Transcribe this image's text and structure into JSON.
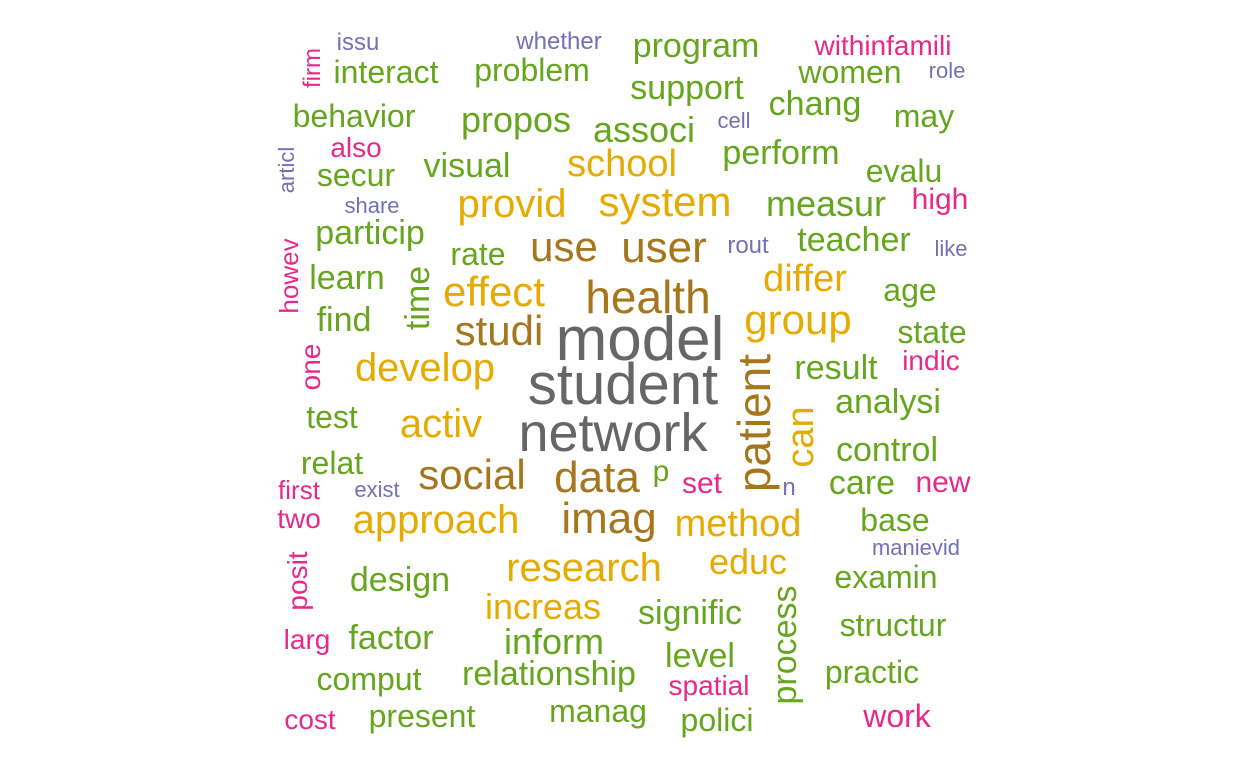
{
  "palette": {
    "gray": "#666666",
    "olive": "#a6761d",
    "gold": "#e6ab02",
    "green": "#66a61e",
    "pink": "#e7298a",
    "purple": "#7570b3"
  },
  "words": [
    {
      "text": "model",
      "color": "gray",
      "vertical": false
    },
    {
      "text": "student",
      "color": "gray",
      "vertical": false
    },
    {
      "text": "network",
      "color": "gray",
      "vertical": false
    },
    {
      "text": "health",
      "color": "olive",
      "vertical": false
    },
    {
      "text": "user",
      "color": "olive",
      "vertical": false
    },
    {
      "text": "use",
      "color": "olive",
      "vertical": false
    },
    {
      "text": "studi",
      "color": "olive",
      "vertical": false
    },
    {
      "text": "social",
      "color": "olive",
      "vertical": false
    },
    {
      "text": "data",
      "color": "olive",
      "vertical": false
    },
    {
      "text": "imag",
      "color": "olive",
      "vertical": false
    },
    {
      "text": "patient",
      "color": "olive",
      "vertical": true
    },
    {
      "text": "system",
      "color": "gold",
      "vertical": false
    },
    {
      "text": "provid",
      "color": "gold",
      "vertical": false
    },
    {
      "text": "school",
      "color": "gold",
      "vertical": false
    },
    {
      "text": "effect",
      "color": "gold",
      "vertical": false
    },
    {
      "text": "develop",
      "color": "gold",
      "vertical": false
    },
    {
      "text": "activ",
      "color": "gold",
      "vertical": false
    },
    {
      "text": "approach",
      "color": "gold",
      "vertical": false
    },
    {
      "text": "research",
      "color": "gold",
      "vertical": false
    },
    {
      "text": "increas",
      "color": "gold",
      "vertical": false
    },
    {
      "text": "method",
      "color": "gold",
      "vertical": false
    },
    {
      "text": "educ",
      "color": "gold",
      "vertical": false
    },
    {
      "text": "group",
      "color": "gold",
      "vertical": false
    },
    {
      "text": "differ",
      "color": "gold",
      "vertical": false
    },
    {
      "text": "can",
      "color": "gold",
      "vertical": true
    },
    {
      "text": "program",
      "color": "green",
      "vertical": false
    },
    {
      "text": "interact",
      "color": "green",
      "vertical": false
    },
    {
      "text": "problem",
      "color": "green",
      "vertical": false
    },
    {
      "text": "support",
      "color": "green",
      "vertical": false
    },
    {
      "text": "women",
      "color": "green",
      "vertical": false
    },
    {
      "text": "behavior",
      "color": "green",
      "vertical": false
    },
    {
      "text": "propos",
      "color": "green",
      "vertical": false
    },
    {
      "text": "associ",
      "color": "green",
      "vertical": false
    },
    {
      "text": "chang",
      "color": "green",
      "vertical": false
    },
    {
      "text": "may",
      "color": "green",
      "vertical": false
    },
    {
      "text": "perform",
      "color": "green",
      "vertical": false
    },
    {
      "text": "visual",
      "color": "green",
      "vertical": false
    },
    {
      "text": "secur",
      "color": "green",
      "vertical": false
    },
    {
      "text": "evalu",
      "color": "green",
      "vertical": false
    },
    {
      "text": "measur",
      "color": "green",
      "vertical": false
    },
    {
      "text": "particip",
      "color": "green",
      "vertical": false
    },
    {
      "text": "teacher",
      "color": "green",
      "vertical": false
    },
    {
      "text": "rate",
      "color": "green",
      "vertical": false
    },
    {
      "text": "learn",
      "color": "green",
      "vertical": false
    },
    {
      "text": "age",
      "color": "green",
      "vertical": false
    },
    {
      "text": "find",
      "color": "green",
      "vertical": false
    },
    {
      "text": "state",
      "color": "green",
      "vertical": false
    },
    {
      "text": "result",
      "color": "green",
      "vertical": false
    },
    {
      "text": "analysi",
      "color": "green",
      "vertical": false
    },
    {
      "text": "test",
      "color": "green",
      "vertical": false
    },
    {
      "text": "control",
      "color": "green",
      "vertical": false
    },
    {
      "text": "relat",
      "color": "green",
      "vertical": false
    },
    {
      "text": "p",
      "color": "green",
      "vertical": false
    },
    {
      "text": "care",
      "color": "green",
      "vertical": false
    },
    {
      "text": "base",
      "color": "green",
      "vertical": false
    },
    {
      "text": "design",
      "color": "green",
      "vertical": false
    },
    {
      "text": "examin",
      "color": "green",
      "vertical": false
    },
    {
      "text": "signific",
      "color": "green",
      "vertical": false
    },
    {
      "text": "structur",
      "color": "green",
      "vertical": false
    },
    {
      "text": "factor",
      "color": "green",
      "vertical": false
    },
    {
      "text": "inform",
      "color": "green",
      "vertical": false
    },
    {
      "text": "level",
      "color": "green",
      "vertical": false
    },
    {
      "text": "relationship",
      "color": "green",
      "vertical": false
    },
    {
      "text": "comput",
      "color": "green",
      "vertical": false
    },
    {
      "text": "practic",
      "color": "green",
      "vertical": false
    },
    {
      "text": "present",
      "color": "green",
      "vertical": false
    },
    {
      "text": "manag",
      "color": "green",
      "vertical": false
    },
    {
      "text": "polici",
      "color": "green",
      "vertical": false
    },
    {
      "text": "time",
      "color": "green",
      "vertical": true
    },
    {
      "text": "process",
      "color": "green",
      "vertical": true
    },
    {
      "text": "withinfamili",
      "color": "pink",
      "vertical": false
    },
    {
      "text": "also",
      "color": "pink",
      "vertical": false
    },
    {
      "text": "high",
      "color": "pink",
      "vertical": false
    },
    {
      "text": "indic",
      "color": "pink",
      "vertical": false
    },
    {
      "text": "first",
      "color": "pink",
      "vertical": false
    },
    {
      "text": "set",
      "color": "pink",
      "vertical": false
    },
    {
      "text": "new",
      "color": "pink",
      "vertical": false
    },
    {
      "text": "two",
      "color": "pink",
      "vertical": false
    },
    {
      "text": "larg",
      "color": "pink",
      "vertical": false
    },
    {
      "text": "spatial",
      "color": "pink",
      "vertical": false
    },
    {
      "text": "cost",
      "color": "pink",
      "vertical": false
    },
    {
      "text": "work",
      "color": "pink",
      "vertical": false
    },
    {
      "text": "firm",
      "color": "pink",
      "vertical": true
    },
    {
      "text": "howev",
      "color": "pink",
      "vertical": true
    },
    {
      "text": "one",
      "color": "pink",
      "vertical": true
    },
    {
      "text": "posit",
      "color": "pink",
      "vertical": true
    },
    {
      "text": "issu",
      "color": "purple",
      "vertical": false
    },
    {
      "text": "whether",
      "color": "purple",
      "vertical": false
    },
    {
      "text": "role",
      "color": "purple",
      "vertical": false
    },
    {
      "text": "cell",
      "color": "purple",
      "vertical": false
    },
    {
      "text": "share",
      "color": "purple",
      "vertical": false
    },
    {
      "text": "rout",
      "color": "purple",
      "vertical": false
    },
    {
      "text": "like",
      "color": "purple",
      "vertical": false
    },
    {
      "text": "exist",
      "color": "purple",
      "vertical": false
    },
    {
      "text": "n",
      "color": "purple",
      "vertical": false
    },
    {
      "text": "manievid",
      "color": "purple",
      "vertical": false
    },
    {
      "text": "articl",
      "color": "purple",
      "vertical": true
    }
  ]
}
